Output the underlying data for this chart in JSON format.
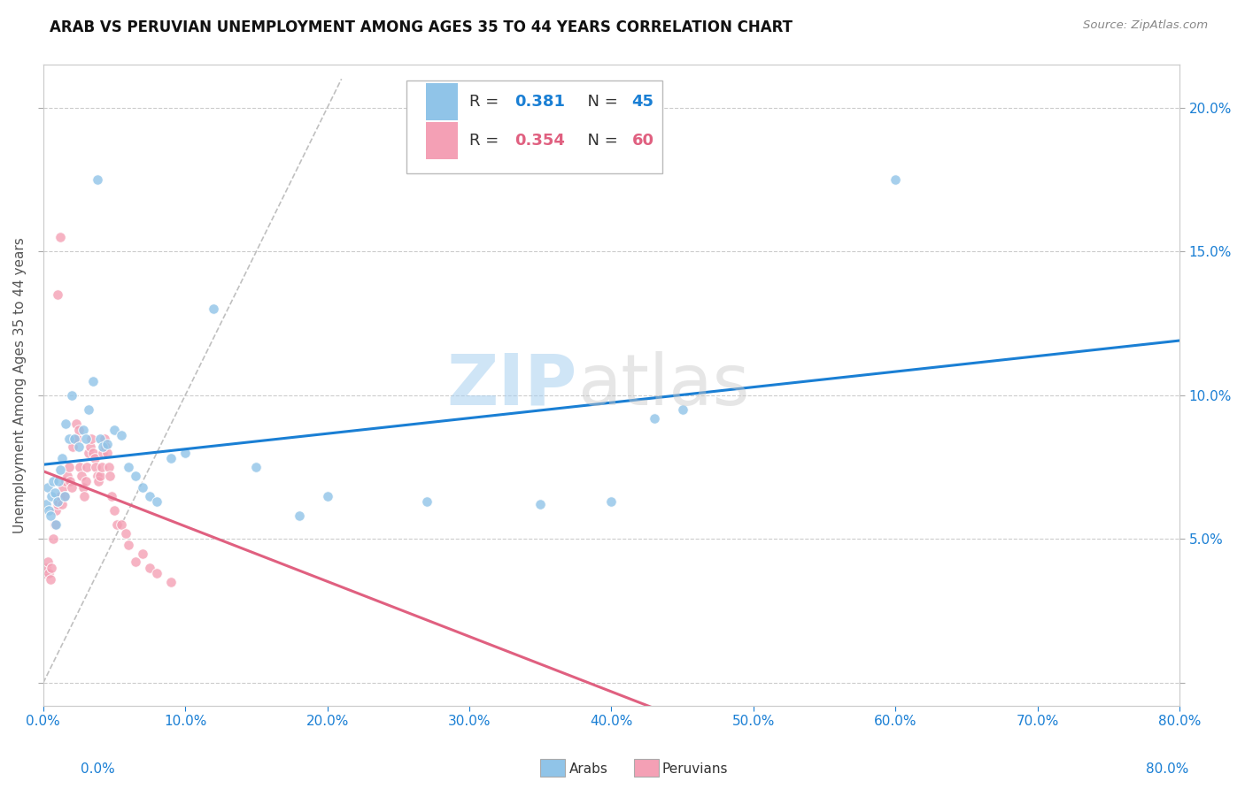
{
  "title": "ARAB VS PERUVIAN UNEMPLOYMENT AMONG AGES 35 TO 44 YEARS CORRELATION CHART",
  "source": "Source: ZipAtlas.com",
  "ylabel": "Unemployment Among Ages 35 to 44 years",
  "xlim": [
    0,
    0.8
  ],
  "ylim": [
    -0.008,
    0.215
  ],
  "xticks": [
    0.0,
    0.1,
    0.2,
    0.3,
    0.4,
    0.5,
    0.6,
    0.7,
    0.8
  ],
  "yticks": [
    0.0,
    0.05,
    0.1,
    0.15,
    0.2
  ],
  "arab_color": "#90c4e8",
  "peruvian_color": "#f4a0b5",
  "arab_line_color": "#1a7fd4",
  "peruvian_line_color": "#e06080",
  "arab_R": 0.381,
  "arab_N": 45,
  "peruvian_R": 0.354,
  "peruvian_N": 60,
  "arab_x": [
    0.002,
    0.003,
    0.004,
    0.005,
    0.006,
    0.007,
    0.008,
    0.009,
    0.01,
    0.011,
    0.012,
    0.013,
    0.015,
    0.016,
    0.018,
    0.02,
    0.022,
    0.025,
    0.028,
    0.03,
    0.032,
    0.035,
    0.038,
    0.04,
    0.042,
    0.045,
    0.05,
    0.055,
    0.06,
    0.065,
    0.07,
    0.075,
    0.08,
    0.09,
    0.1,
    0.12,
    0.15,
    0.18,
    0.2,
    0.27,
    0.35,
    0.4,
    0.45,
    0.6,
    0.43
  ],
  "arab_y": [
    0.062,
    0.068,
    0.06,
    0.058,
    0.065,
    0.07,
    0.066,
    0.055,
    0.063,
    0.07,
    0.074,
    0.078,
    0.065,
    0.09,
    0.085,
    0.1,
    0.085,
    0.082,
    0.088,
    0.085,
    0.095,
    0.105,
    0.175,
    0.085,
    0.082,
    0.083,
    0.088,
    0.086,
    0.075,
    0.072,
    0.068,
    0.065,
    0.063,
    0.078,
    0.08,
    0.13,
    0.075,
    0.058,
    0.065,
    0.063,
    0.062,
    0.063,
    0.095,
    0.175,
    0.092
  ],
  "peruvian_x": [
    0.001,
    0.002,
    0.003,
    0.004,
    0.005,
    0.006,
    0.007,
    0.008,
    0.009,
    0.01,
    0.011,
    0.012,
    0.013,
    0.014,
    0.015,
    0.016,
    0.017,
    0.018,
    0.019,
    0.02,
    0.021,
    0.022,
    0.023,
    0.024,
    0.025,
    0.026,
    0.027,
    0.028,
    0.029,
    0.03,
    0.031,
    0.032,
    0.033,
    0.034,
    0.035,
    0.036,
    0.037,
    0.038,
    0.039,
    0.04,
    0.041,
    0.042,
    0.043,
    0.044,
    0.045,
    0.046,
    0.047,
    0.048,
    0.05,
    0.052,
    0.055,
    0.058,
    0.06,
    0.065,
    0.07,
    0.075,
    0.08,
    0.09,
    0.01,
    0.012
  ],
  "peruvian_y": [
    0.038,
    0.04,
    0.042,
    0.038,
    0.036,
    0.04,
    0.05,
    0.055,
    0.06,
    0.062,
    0.063,
    0.065,
    0.062,
    0.068,
    0.065,
    0.07,
    0.072,
    0.075,
    0.07,
    0.068,
    0.082,
    0.085,
    0.09,
    0.085,
    0.088,
    0.075,
    0.072,
    0.068,
    0.065,
    0.07,
    0.075,
    0.08,
    0.082,
    0.085,
    0.08,
    0.078,
    0.075,
    0.072,
    0.07,
    0.072,
    0.075,
    0.08,
    0.085,
    0.082,
    0.08,
    0.075,
    0.072,
    0.065,
    0.06,
    0.055,
    0.055,
    0.052,
    0.048,
    0.042,
    0.045,
    0.04,
    0.038,
    0.035,
    0.135,
    0.155
  ],
  "watermark_zip": "ZIP",
  "watermark_atlas": "atlas",
  "diag_line_end": 0.21
}
